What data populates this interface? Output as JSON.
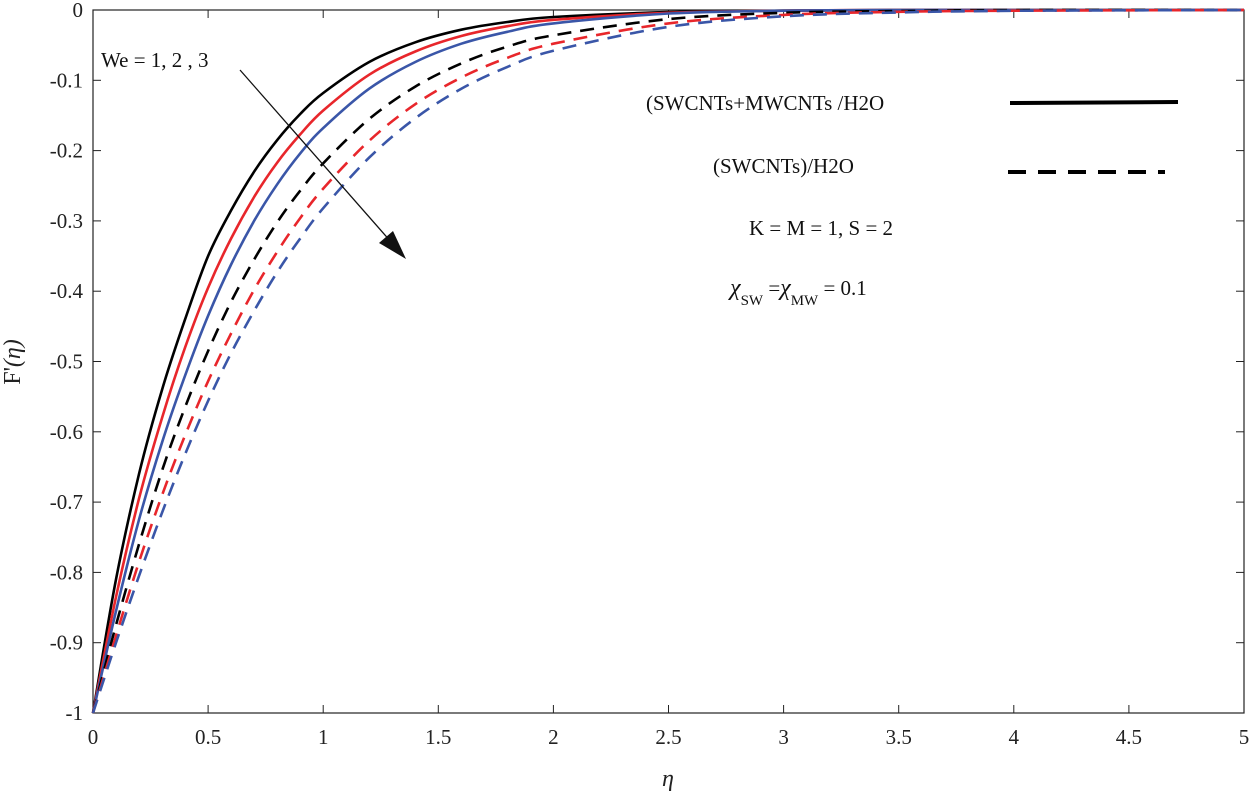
{
  "chart_data": {
    "type": "line",
    "title": "",
    "xlabel": "η",
    "ylabel_main": "F'",
    "ylabel_arg": "(η)",
    "xlim": [
      0,
      5
    ],
    "ylim": [
      -1,
      0
    ],
    "xticks": [
      0,
      0.5,
      1,
      1.5,
      2,
      2.5,
      3,
      3.5,
      4,
      4.5,
      5
    ],
    "xtick_labels": [
      "0",
      "0.5",
      "1",
      "1.5",
      "2",
      "2.5",
      "3",
      "3.5",
      "4",
      "4.5",
      "5"
    ],
    "yticks": [
      0,
      -0.1,
      -0.2,
      -0.3,
      -0.4,
      -0.5,
      -0.6,
      -0.7,
      -0.8,
      -0.9,
      -1
    ],
    "ytick_labels": [
      "0",
      "-0.1",
      "-0.2",
      "-0.3",
      "-0.4",
      "-0.5",
      "-0.6",
      "-0.7",
      "-0.8",
      "-0.9",
      "-1"
    ],
    "grid": false,
    "x": [
      0,
      0.1,
      0.2,
      0.3,
      0.4,
      0.5,
      0.6,
      0.7,
      0.8,
      0.9,
      1.0,
      1.2,
      1.4,
      1.6,
      1.8,
      2.0,
      2.5,
      3.0,
      3.5,
      4.0,
      5.0
    ],
    "series": [
      {
        "color": "#000000",
        "style": "solid",
        "values": [
          -1,
          -0.81,
          -0.66,
          -0.54,
          -0.44,
          -0.35,
          -0.285,
          -0.23,
          -0.185,
          -0.148,
          -0.118,
          -0.074,
          -0.046,
          -0.028,
          -0.017,
          -0.01,
          -0.003,
          -0.001,
          0,
          0,
          0
        ]
      },
      {
        "color": "#e8262b",
        "style": "solid",
        "values": [
          -1,
          -0.835,
          -0.695,
          -0.58,
          -0.48,
          -0.395,
          -0.325,
          -0.266,
          -0.217,
          -0.177,
          -0.143,
          -0.092,
          -0.059,
          -0.037,
          -0.023,
          -0.014,
          -0.004,
          -0.001,
          0,
          0,
          0
        ]
      },
      {
        "color": "#3a56a8",
        "style": "solid",
        "values": [
          -1,
          -0.855,
          -0.725,
          -0.615,
          -0.52,
          -0.435,
          -0.362,
          -0.3,
          -0.248,
          -0.204,
          -0.168,
          -0.112,
          -0.074,
          -0.048,
          -0.031,
          -0.019,
          -0.005,
          -0.001,
          0,
          0,
          0
        ]
      },
      {
        "color": "#000000",
        "style": "dashed",
        "values": [
          -1,
          -0.875,
          -0.76,
          -0.655,
          -0.565,
          -0.485,
          -0.415,
          -0.355,
          -0.302,
          -0.257,
          -0.218,
          -0.155,
          -0.109,
          -0.076,
          -0.052,
          -0.036,
          -0.013,
          -0.004,
          -0.0015,
          0,
          0
        ]
      },
      {
        "color": "#e8262b",
        "style": "dashed",
        "values": [
          -1,
          -0.89,
          -0.785,
          -0.69,
          -0.605,
          -0.528,
          -0.46,
          -0.398,
          -0.344,
          -0.296,
          -0.254,
          -0.186,
          -0.134,
          -0.096,
          -0.068,
          -0.048,
          -0.019,
          -0.007,
          -0.0025,
          -0.001,
          0
        ]
      },
      {
        "color": "#3a56a8",
        "style": "dashed",
        "values": [
          -1,
          -0.9,
          -0.805,
          -0.715,
          -0.632,
          -0.556,
          -0.488,
          -0.428,
          -0.373,
          -0.325,
          -0.282,
          -0.21,
          -0.154,
          -0.112,
          -0.081,
          -0.058,
          -0.024,
          -0.009,
          -0.0035,
          -0.0012,
          0
        ]
      }
    ],
    "legend": [
      {
        "label": "(SWCNTs+MWCNTs /H2O",
        "style": "solid"
      },
      {
        "label": "(SWCNTs)/H2O",
        "style": "dashed"
      }
    ],
    "annotations": {
      "we_text": "We = 1, 2 , 3",
      "params_text": "K =  M = 1, S = 2",
      "chi": "χ",
      "chi_sub1": "SW",
      "eq": " =",
      "chi_sub2": "MW",
      "value": " = 0.1"
    },
    "colors": {
      "black": "#000000",
      "red": "#e8262b",
      "blue": "#3a56a8"
    }
  }
}
